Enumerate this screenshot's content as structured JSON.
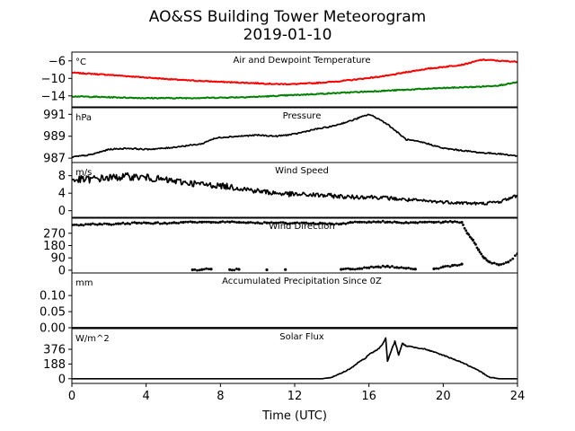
{
  "chart_data": {
    "type": "line",
    "title": "AO&SS Building Tower Meteorogram",
    "subtitle": "2019-01-10",
    "xlabel": "Time (UTC)",
    "xlim": [
      0,
      24
    ],
    "x_ticks": [
      0,
      4,
      8,
      12,
      16,
      20,
      24
    ],
    "panels": [
      {
        "id": "temperature",
        "title": "Air and Dewpoint Temperature",
        "unit": "°C",
        "ylim": [
          -16.5,
          -4
        ],
        "y_ticks": [
          -6,
          -10,
          -14
        ],
        "y_tick_labels": [
          "−6",
          "−10",
          "−14"
        ],
        "series": [
          {
            "color": "#ff0000",
            "style": "line",
            "x": [
              0,
              2,
              4,
              6,
              8,
              10,
              11,
              12,
              13,
              14,
              15,
              16,
              17,
              18,
              19,
              20,
              21,
              21.5,
              22,
              22.5,
              23,
              24
            ],
            "y": [
              -8.7,
              -9.2,
              -9.8,
              -10.4,
              -10.8,
              -11.1,
              -11.3,
              -11.3,
              -11.1,
              -10.8,
              -10.4,
              -9.9,
              -9.4,
              -8.6,
              -7.9,
              -7.4,
              -6.9,
              -6.4,
              -5.8,
              -5.8,
              -6.0,
              -6.2
            ]
          },
          {
            "color": "#008000",
            "style": "line",
            "x": [
              0,
              2,
              4,
              6,
              8,
              10,
              12,
              14,
              16,
              18,
              20,
              22,
              23,
              24
            ],
            "y": [
              -14.1,
              -14.3,
              -14.5,
              -14.5,
              -14.4,
              -14.2,
              -13.8,
              -13.4,
              -13.0,
              -12.6,
              -12.2,
              -11.9,
              -11.6,
              -10.9
            ]
          }
        ]
      },
      {
        "id": "pressure",
        "title": "Pressure",
        "unit": "hPa",
        "ylim": [
          986.6,
          991.6
        ],
        "y_ticks": [
          987,
          989,
          991
        ],
        "y_tick_labels": [
          "987",
          "989",
          "991"
        ],
        "series": [
          {
            "color": "#000000",
            "style": "line",
            "x": [
              0,
              1,
              2,
              3,
              4,
              5,
              6,
              7,
              7.5,
              8,
              9,
              10,
              11,
              12,
              13,
              14,
              15,
              15.5,
              16,
              16.5,
              17,
              17.5,
              18,
              19,
              20,
              21,
              22,
              23,
              24
            ],
            "y": [
              987.1,
              987.3,
              987.8,
              987.9,
              987.8,
              987.9,
              988.1,
              988.3,
              988.7,
              988.9,
              989.0,
              989.1,
              989.0,
              989.2,
              989.6,
              989.9,
              990.4,
              990.7,
              991.0,
              990.6,
              990.1,
              989.4,
              988.7,
              988.4,
              987.9,
              987.7,
              987.5,
              987.4,
              987.2
            ]
          }
        ]
      },
      {
        "id": "wind_speed",
        "title": "Wind Speed",
        "unit": "m/s",
        "ylim": [
          -1.5,
          11
        ],
        "y_ticks": [
          0,
          4,
          8
        ],
        "y_tick_labels": [
          "0",
          "4",
          "8"
        ],
        "series": [
          {
            "color": "#000000",
            "style": "line",
            "x": [
              0,
              1,
              2,
              3,
              4,
              5,
              6,
              7,
              8,
              9,
              10,
              11,
              12,
              13,
              14,
              15,
              16,
              17,
              18,
              19,
              20,
              21,
              22,
              23,
              24
            ],
            "y": [
              7.0,
              7.2,
              7.5,
              7.8,
              7.6,
              7.0,
              6.5,
              6.0,
              5.7,
              5.2,
              4.5,
              4.0,
              3.7,
              3.6,
              3.4,
              3.1,
              3.2,
              2.9,
              2.5,
              2.2,
              2.0,
              1.8,
              1.6,
              2.0,
              3.5
            ]
          }
        ]
      },
      {
        "id": "wind_direction",
        "title": "Wind Direction",
        "unit": "",
        "ylim": [
          -20,
          380
        ],
        "y_ticks": [
          0,
          90,
          180,
          270
        ],
        "y_tick_labels": [
          "0",
          "90",
          "180",
          "270"
        ],
        "series": [
          {
            "color": "#000000",
            "style": "points",
            "x": [
              0,
              0.5,
              1,
              1.5,
              2,
              2.5,
              3,
              3.5,
              4,
              4.5,
              5,
              5.5,
              6,
              6.5,
              7,
              7.5,
              8,
              8.5,
              9,
              9.5,
              10,
              10.5,
              11,
              11.5,
              12,
              12.5,
              13,
              13.5,
              14,
              14.5,
              15,
              15.5,
              16,
              16.5,
              17,
              17.5,
              18,
              18.5,
              19,
              19.5,
              20,
              20.5,
              21,
              21.3,
              21.6,
              21.9,
              22.2,
              22.5,
              23,
              23.5,
              24
            ],
            "y": [
              330,
              332,
              335,
              338,
              336,
              340,
              342,
              344,
              345,
              346,
              345,
              348,
              350,
              352,
              351,
              350,
              352,
              352,
              350,
              348,
              347,
              346,
              345,
              344,
              345,
              346,
              343,
              341,
              339,
              338,
              350,
              352,
              353,
              354,
              352,
              350,
              349,
              348,
              352,
              350,
              351,
              352,
              350,
              270,
              220,
              150,
              90,
              60,
              40,
              60,
              120
            ]
          },
          {
            "color": "#000000",
            "style": "points",
            "x": [
              6.5,
              7,
              7.5,
              8.5,
              9,
              10.5,
              11.5,
              14.5,
              15,
              15.5,
              16,
              16.5,
              17,
              17.5,
              18,
              18.5,
              19.5,
              20,
              20.5,
              21
            ],
            "y": [
              3,
              5,
              8,
              4,
              6,
              3,
              5,
              6,
              8,
              12,
              18,
              25,
              30,
              20,
              14,
              8,
              10,
              25,
              35,
              45
            ]
          }
        ]
      },
      {
        "id": "precipitation",
        "title": "Accumulated Precipitation Since 0Z",
        "unit": "mm",
        "ylim": [
          0,
          0.17
        ],
        "y_ticks": [
          0.0,
          0.05,
          0.1
        ],
        "y_tick_labels": [
          "0.00",
          "0.05",
          "0.10"
        ],
        "series": [
          {
            "color": "#000000",
            "style": "line",
            "x": [
              0,
              24
            ],
            "y": [
              0,
              0
            ]
          }
        ]
      },
      {
        "id": "solar",
        "title": "Solar Flux",
        "unit": "W/m^2",
        "ylim": [
          -60,
          640
        ],
        "y_ticks": [
          0,
          188,
          376
        ],
        "y_tick_labels": [
          "0",
          "188",
          "376"
        ],
        "series": [
          {
            "color": "#000000",
            "style": "line",
            "x": [
              0,
              13.5,
              14,
              14.5,
              15,
              15.5,
              15.8,
              16,
              16.3,
              16.5,
              16.7,
              16.9,
              17,
              17.2,
              17.4,
              17.6,
              17.8,
              18,
              19,
              20,
              21,
              22,
              22.5,
              23,
              24
            ],
            "y": [
              0,
              0,
              20,
              70,
              130,
              220,
              260,
              310,
              350,
              380,
              430,
              520,
              220,
              360,
              480,
              300,
              450,
              420,
              380,
              300,
              210,
              90,
              20,
              0,
              0
            ]
          }
        ]
      }
    ]
  }
}
